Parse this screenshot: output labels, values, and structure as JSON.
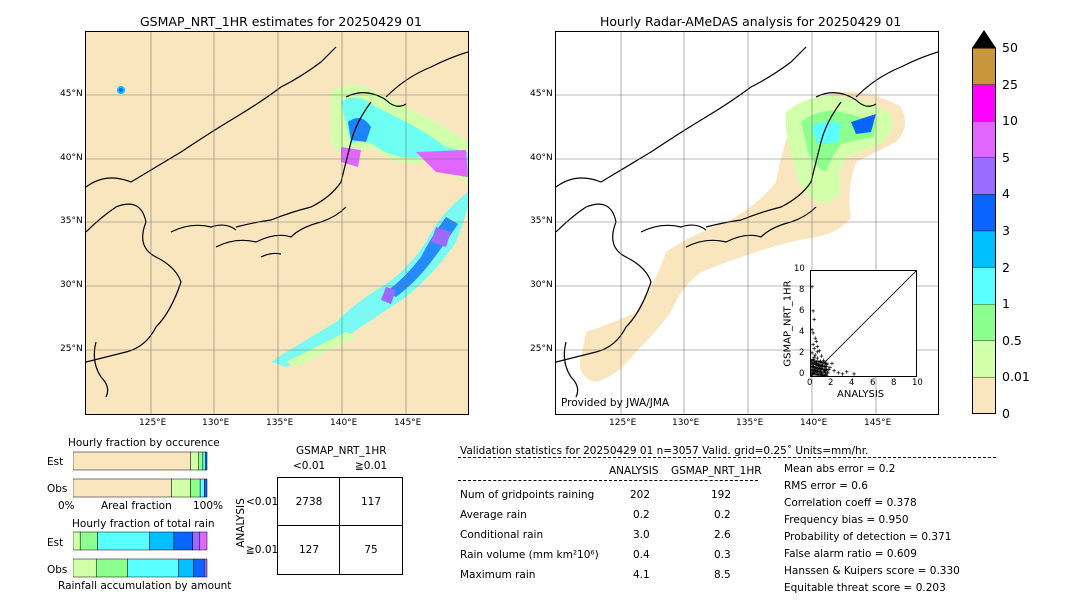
{
  "left_map": {
    "title": "GSMAP_NRT_1HR estimates for 20250429 01",
    "lat_labels": [
      "45°N",
      "40°N",
      "35°N",
      "30°N",
      "25°N"
    ],
    "lon_labels": [
      "125°E",
      "130°E",
      "135°E",
      "140°E",
      "145°E"
    ]
  },
  "right_map": {
    "title": "Hourly Radar-AMeDAS analysis for 20250429 01",
    "lat_labels": [
      "45°N",
      "40°N",
      "35°N",
      "30°N",
      "25°N"
    ],
    "lon_labels": [
      "125°E",
      "130°E",
      "135°E",
      "140°E",
      "145°E"
    ],
    "credit": "Provided by JWA/JMA"
  },
  "colorbar": {
    "labels": [
      "50",
      "25",
      "10",
      "5",
      "4",
      "3",
      "2",
      "1",
      "0.5",
      "0.01",
      "0"
    ],
    "colors": [
      "#c8963c",
      "#ff00ff",
      "#e066ff",
      "#9b6bff",
      "#0a64ff",
      "#00bfff",
      "#5affff",
      "#8cff8c",
      "#d2ffaa",
      "#fae6be"
    ],
    "extend_color": "#000000"
  },
  "scatter": {
    "xlabel": "ANALYSIS",
    "ylabel": "GSMAP_NRT_1HR",
    "ticks": [
      "0",
      "2",
      "4",
      "6",
      "8",
      "10"
    ],
    "ylim": [
      0,
      10
    ],
    "xlim": [
      0,
      10
    ]
  },
  "chart_data": {
    "type": "scatter",
    "title": "",
    "xlabel": "ANALYSIS",
    "ylabel": "GSMAP_NRT_1HR",
    "xlim": [
      0,
      10
    ],
    "ylim": [
      0,
      10
    ],
    "points": [
      [
        0.1,
        8.5
      ],
      [
        0.2,
        6.2
      ],
      [
        0.3,
        5.4
      ],
      [
        0.1,
        4.4
      ],
      [
        0.2,
        4.1
      ],
      [
        0.4,
        3.6
      ],
      [
        0.5,
        3.3
      ],
      [
        0.2,
        3.0
      ],
      [
        0.6,
        2.8
      ],
      [
        0.3,
        2.6
      ],
      [
        0.8,
        2.4
      ],
      [
        0.1,
        2.2
      ],
      [
        0.4,
        2.0
      ],
      [
        1.0,
        1.9
      ],
      [
        0.6,
        1.7
      ],
      [
        0.2,
        1.6
      ],
      [
        1.2,
        1.5
      ],
      [
        0.9,
        1.4
      ],
      [
        0.3,
        1.3
      ],
      [
        0.5,
        1.2
      ],
      [
        1.5,
        1.1
      ],
      [
        0.7,
        1.0
      ],
      [
        0.2,
        0.9
      ],
      [
        1.1,
        0.9
      ],
      [
        0.4,
        0.8
      ],
      [
        1.8,
        0.8
      ],
      [
        0.6,
        0.7
      ],
      [
        0.9,
        0.6
      ],
      [
        0.3,
        0.6
      ],
      [
        2.2,
        0.5
      ],
      [
        1.3,
        0.5
      ],
      [
        0.5,
        0.4
      ],
      [
        0.8,
        0.4
      ],
      [
        1.6,
        0.3
      ],
      [
        0.2,
        0.3
      ],
      [
        2.6,
        0.3
      ],
      [
        1.0,
        0.2
      ],
      [
        0.4,
        0.2
      ],
      [
        3.0,
        0.2
      ],
      [
        0.7,
        0.1
      ],
      [
        1.4,
        0.1
      ],
      [
        0.1,
        0.1
      ],
      [
        4.1,
        0.2
      ],
      [
        2.0,
        1.2
      ],
      [
        0.3,
        1.8
      ],
      [
        1.7,
        0.6
      ],
      [
        0.6,
        2.3
      ],
      [
        3.4,
        0.4
      ]
    ]
  },
  "occurrence": {
    "title": "Hourly fraction by occurence",
    "rows": [
      "Est",
      "Obs"
    ],
    "xlabel": "Areal fraction",
    "x0": "0%",
    "x100": "100%",
    "est": [
      0.85,
      0.06,
      0.03,
      0.02,
      0.01
    ],
    "obs": [
      0.72,
      0.14,
      0.07,
      0.03,
      0.02
    ]
  },
  "total_rain": {
    "title": "Hourly fraction of total rain",
    "rows": [
      "Est",
      "Obs"
    ],
    "xlabel": "Rainfall accumulation by amount",
    "est": [
      0.05,
      0.12,
      0.36,
      0.17,
      0.13,
      0.05,
      0.05
    ],
    "obs": [
      0.17,
      0.23,
      0.37,
      0.11,
      0.08,
      0.02
    ]
  },
  "contingency": {
    "header": "GSMAP_NRT_1HR",
    "col_labels": [
      "<0.01",
      "≧0.01"
    ],
    "row_labels": [
      "<0.01",
      "≧0.01"
    ],
    "side_label": "ANALYSIS",
    "cells": [
      "2738",
      "117",
      "127",
      "75"
    ]
  },
  "validation": {
    "header": "Validation statistics for 20250429 01  n=3057 Valid. grid=0.25˚ Units=mm/hr.",
    "col_analysis": "ANALYSIS",
    "col_gsmap": "GSMAP_NRT_1HR",
    "rows": [
      {
        "label": "Num of gridpoints raining",
        "analysis": "202",
        "gsmap": "192"
      },
      {
        "label": "Average rain",
        "analysis": "0.2",
        "gsmap": "0.2"
      },
      {
        "label": "Conditional rain",
        "analysis": "3.0",
        "gsmap": "2.6"
      },
      {
        "label": "Rain volume (mm km²10⁶)",
        "analysis": "0.4",
        "gsmap": "0.3"
      },
      {
        "label": "Maximum rain",
        "analysis": "4.1",
        "gsmap": "8.5"
      }
    ],
    "scores": [
      "Mean abs error =    0.2",
      "RMS error =    0.6",
      "Correlation coeff =  0.378",
      "Frequency bias =  0.950",
      "Probability of detection =  0.371",
      "False alarm ratio =  0.609",
      "Hanssen & Kuipers score =  0.330",
      "Equitable threat score =  0.203"
    ]
  }
}
